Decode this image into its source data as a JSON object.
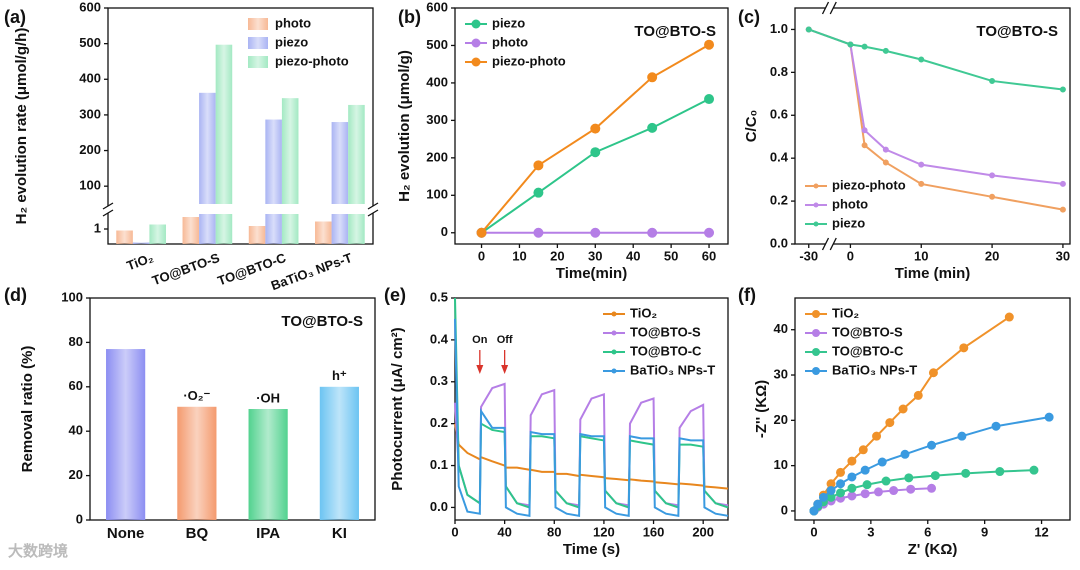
{
  "watermark": "大数跨境",
  "chart_data": [
    {
      "label": "(a)",
      "type": "bar",
      "ylabel": "H₂ evolution rate (μmol/g/h)",
      "categories": [
        "TiO₂",
        "TO@BTO-S",
        "TO@BTO-C",
        "BaTiO₃ NPs-T"
      ],
      "series": [
        {
          "name": "photo",
          "color": "#f7b996",
          "values": [
            0.9,
            1.8,
            1.2,
            1.5
          ]
        },
        {
          "name": "piezo",
          "color": "#aab4f3",
          "values": [
            0.1,
            362,
            287,
            280
          ]
        },
        {
          "name": "piezo-photo",
          "color": "#a3e9c3",
          "values": [
            1.3,
            497,
            347,
            328
          ]
        }
      ],
      "ylim": [
        50,
        600
      ],
      "yticks": [
        100,
        200,
        300,
        400,
        500,
        600
      ],
      "ylim_lower": [
        0,
        2
      ],
      "yticks_lower": [
        1
      ],
      "legend": "top-right"
    },
    {
      "label": "(b)",
      "type": "line",
      "xlabel": "Time(min)",
      "ylabel": "H₂ evolution (μmol/g)",
      "annotation": "TO@BTO-S",
      "x": [
        0,
        15,
        30,
        45,
        60
      ],
      "series": [
        {
          "name": "piezo",
          "color": "#2ec58a",
          "values": [
            0,
            107,
            215,
            280,
            357
          ]
        },
        {
          "name": "photo",
          "color": "#b57ee6",
          "values": [
            0,
            0,
            0,
            0,
            0
          ]
        },
        {
          "name": "piezo-photo",
          "color": "#f28a1d",
          "values": [
            0,
            180,
            278,
            415,
            502
          ]
        }
      ],
      "xlim": [
        -7,
        65
      ],
      "xticks": [
        0,
        10,
        20,
        30,
        40,
        50,
        60
      ],
      "ylim": [
        -30,
        600
      ],
      "yticks": [
        0,
        100,
        200,
        300,
        400,
        500,
        600
      ],
      "legend": "top-left",
      "markers": true
    },
    {
      "label": "(c)",
      "type": "line",
      "xlabel": "Time (min)",
      "ylabel": "C/C₀",
      "annotation": "TO@BTO-S",
      "x": [
        -30,
        0,
        2,
        5,
        10,
        20,
        30
      ],
      "series": [
        {
          "name": "piezo-photo",
          "color": "#f0a060",
          "values": [
            1.0,
            0.93,
            0.46,
            0.38,
            0.28,
            0.22,
            0.16
          ]
        },
        {
          "name": "photo",
          "color": "#c08ae8",
          "values": [
            1.0,
            0.93,
            0.53,
            0.44,
            0.37,
            0.32,
            0.28
          ]
        },
        {
          "name": "piezo",
          "color": "#40c994",
          "values": [
            1.0,
            0.93,
            0.92,
            0.9,
            0.86,
            0.76,
            0.72
          ]
        }
      ],
      "xlim": [
        -33,
        31
      ],
      "xbreak": [
        -27,
        -2
      ],
      "xticks": [
        -30,
        0,
        10,
        20,
        30
      ],
      "ylim": [
        0,
        1.1
      ],
      "yticks": [
        {
          "value": 0,
          "label": "0.0"
        },
        0.2,
        0.4,
        0.6,
        0.8,
        {
          "value": 1,
          "label": "1.0"
        }
      ],
      "legend": "bottom-left",
      "markers": true
    },
    {
      "label": "(d)",
      "type": "bar",
      "ylabel": "Removal ratio (%)",
      "annotation": "TO@BTO-S",
      "categories": [
        "None",
        "BQ",
        "IPA",
        "KI"
      ],
      "values": [
        77,
        51,
        50,
        60
      ],
      "colors": [
        "#8c8ef2",
        "#f49a6e",
        "#52d28f",
        "#6cc4f2"
      ],
      "bar_annotations": [
        null,
        "·O₂⁻",
        "·OH",
        "h⁺"
      ],
      "ylim": [
        0,
        100
      ],
      "yticks": [
        0,
        20,
        40,
        60,
        80,
        100
      ]
    },
    {
      "label": "(e)",
      "type": "line",
      "xlabel": "Time (s)",
      "ylabel": "Photocurrent (μA/ cm²)",
      "x": [
        0,
        3,
        10,
        20,
        21,
        30,
        40,
        41,
        50,
        60,
        61,
        70,
        80,
        81,
        90,
        100,
        101,
        110,
        120,
        121,
        130,
        140,
        141,
        150,
        160,
        161,
        170,
        180,
        181,
        190,
        200,
        201,
        210,
        220
      ],
      "series": [
        {
          "name": "TiO₂",
          "color": "#e8871e",
          "values": [
            0.2,
            0.15,
            0.13,
            0.115,
            0.12,
            0.11,
            0.1,
            0.095,
            0.095,
            0.09,
            0.09,
            0.085,
            0.085,
            0.08,
            0.08,
            0.075,
            0.078,
            0.075,
            0.072,
            0.07,
            0.068,
            0.065,
            0.067,
            0.064,
            0.062,
            0.06,
            0.058,
            0.055,
            0.057,
            0.055,
            0.052,
            0.05,
            0.048,
            0.045
          ]
        },
        {
          "name": "TO@BTO-S",
          "color": "#b57ee6",
          "values": [
            0.25,
            0.1,
            0.03,
            0.01,
            0.24,
            0.285,
            0.295,
            0.05,
            0.01,
            0.005,
            0.22,
            0.27,
            0.28,
            0.04,
            0.01,
            0.005,
            0.21,
            0.26,
            0.27,
            0.04,
            0.01,
            0.005,
            0.2,
            0.25,
            0.26,
            0.04,
            0.01,
            0.005,
            0.19,
            0.23,
            0.245,
            0.04,
            0.01,
            0.005
          ]
        },
        {
          "name": "TO@BTO-C",
          "color": "#2ec58a",
          "values": [
            0.5,
            0.1,
            0.03,
            0.01,
            0.2,
            0.185,
            0.18,
            0.05,
            0.01,
            0.0,
            0.17,
            0.17,
            0.165,
            0.04,
            0.01,
            0.0,
            0.17,
            0.165,
            0.16,
            0.04,
            0.01,
            0.0,
            0.16,
            0.155,
            0.15,
            0.04,
            0.01,
            0.0,
            0.15,
            0.15,
            0.145,
            0.04,
            0.01,
            0.0
          ]
        },
        {
          "name": "BaTiO₃ NPs-T",
          "color": "#3a9ae0",
          "values": [
            0.45,
            0.05,
            -0.01,
            -0.015,
            0.23,
            0.19,
            0.19,
            0.0,
            -0.015,
            -0.02,
            0.18,
            0.175,
            0.175,
            0.0,
            -0.015,
            -0.02,
            0.175,
            0.17,
            0.17,
            0.0,
            -0.015,
            -0.02,
            0.17,
            0.165,
            0.165,
            0.0,
            -0.015,
            -0.02,
            0.165,
            0.16,
            0.16,
            0.0,
            -0.015,
            -0.02
          ]
        }
      ],
      "markers_text": [
        {
          "text": "On",
          "x": 20
        },
        {
          "text": "Off",
          "x": 40
        }
      ],
      "xlim": [
        0,
        220
      ],
      "xticks": [
        0,
        40,
        80,
        120,
        160,
        200
      ],
      "ylim": [
        -0.03,
        0.5
      ],
      "yticks": [
        {
          "value": 0,
          "label": "0.0"
        },
        0.1,
        0.2,
        0.3,
        0.4,
        0.5
      ],
      "legend": "top-right",
      "markers": false
    },
    {
      "label": "(f)",
      "type": "line",
      "xlabel": "Z' (KΩ)",
      "ylabel": "-Z'' (KΩ)",
      "series": [
        {
          "name": "TiO₂",
          "color": "#f0922a",
          "x": [
            0,
            0.2,
            0.5,
            0.9,
            1.4,
            2.0,
            2.6,
            3.3,
            4.0,
            4.7,
            5.5,
            6.3,
            7.9,
            10.3
          ],
          "values": [
            0,
            1.5,
            3.5,
            6,
            8.5,
            11,
            13.5,
            16.5,
            19.5,
            22.5,
            25.5,
            30.5,
            36,
            42.8
          ]
        },
        {
          "name": "TO@BTO-S",
          "color": "#b57ee6",
          "x": [
            0,
            0.2,
            0.5,
            0.9,
            1.4,
            2.0,
            2.7,
            3.4,
            4.2,
            5.1,
            6.2
          ],
          "values": [
            0,
            0.8,
            1.5,
            2.2,
            2.8,
            3.3,
            3.8,
            4.2,
            4.5,
            4.8,
            5.0
          ]
        },
        {
          "name": "TO@BTO-C",
          "color": "#35c58f",
          "x": [
            0,
            0.2,
            0.5,
            0.9,
            1.4,
            2.0,
            2.8,
            3.8,
            5.0,
            6.4,
            8.0,
            9.8,
            11.6
          ],
          "values": [
            0,
            1,
            2,
            3,
            4,
            5,
            5.8,
            6.6,
            7.3,
            7.8,
            8.3,
            8.7,
            9.0
          ]
        },
        {
          "name": "BaTiO₃ NPs-T",
          "color": "#3a9ae0",
          "x": [
            0,
            0.2,
            0.5,
            0.9,
            1.4,
            2.0,
            2.7,
            3.6,
            4.8,
            6.2,
            7.8,
            9.6,
            12.4
          ],
          "values": [
            0,
            1.5,
            3,
            4.5,
            6,
            7.5,
            9,
            10.8,
            12.5,
            14.5,
            16.5,
            18.7,
            20.7
          ]
        }
      ],
      "xlim": [
        -1,
        13.5
      ],
      "xticks": [
        0,
        3,
        6,
        9,
        12
      ],
      "ylim": [
        -2,
        47
      ],
      "yticks": [
        0,
        10,
        20,
        30,
        40
      ],
      "legend": "top-left",
      "markers": true
    }
  ]
}
